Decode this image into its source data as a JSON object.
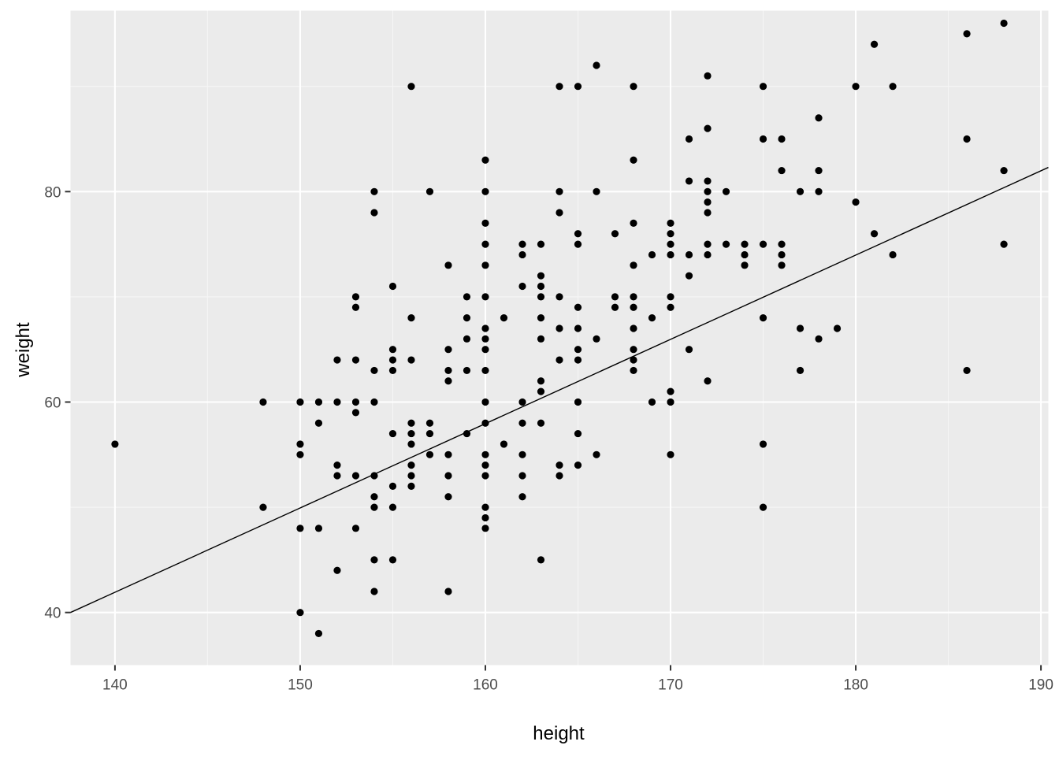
{
  "chart_data": {
    "type": "scatter",
    "title": "",
    "xlabel": "height",
    "ylabel": "weight",
    "xlim": [
      137.6,
      190.4
    ],
    "ylim": [
      35.0,
      97.2
    ],
    "x_ticks": [
      140,
      150,
      160,
      170,
      180,
      190
    ],
    "x_tick_labels": [
      "140",
      "150",
      "160",
      "170",
      "180",
      "190"
    ],
    "y_ticks": [
      40,
      60,
      80
    ],
    "y_tick_labels": [
      "40",
      "60",
      "80"
    ],
    "grid": true,
    "legend": "none",
    "colors": {
      "panel_background": "#ebebeb",
      "grid_major": "#ffffff",
      "grid_minor": "#f5f5f5",
      "points": "#000000",
      "line": "#000000"
    },
    "series": [
      {
        "points": [
          [
            140,
            56
          ],
          [
            148,
            50
          ],
          [
            148,
            60
          ],
          [
            150,
            40
          ],
          [
            150,
            48
          ],
          [
            150,
            55
          ],
          [
            150,
            56
          ],
          [
            150,
            60
          ],
          [
            151,
            38
          ],
          [
            151,
            48
          ],
          [
            151,
            58
          ],
          [
            151,
            60
          ],
          [
            152,
            44
          ],
          [
            152,
            53
          ],
          [
            152,
            54
          ],
          [
            152,
            60
          ],
          [
            152,
            64
          ],
          [
            153,
            48
          ],
          [
            153,
            53
          ],
          [
            153,
            59
          ],
          [
            153,
            60
          ],
          [
            153,
            64
          ],
          [
            153,
            69
          ],
          [
            153,
            70
          ],
          [
            154,
            42
          ],
          [
            154,
            45
          ],
          [
            154,
            50
          ],
          [
            154,
            51
          ],
          [
            154,
            53
          ],
          [
            154,
            60
          ],
          [
            154,
            63
          ],
          [
            154,
            78
          ],
          [
            154,
            80
          ],
          [
            155,
            45
          ],
          [
            155,
            50
          ],
          [
            155,
            52
          ],
          [
            155,
            57
          ],
          [
            155,
            63
          ],
          [
            155,
            64
          ],
          [
            155,
            65
          ],
          [
            155,
            71
          ],
          [
            156,
            52
          ],
          [
            156,
            53
          ],
          [
            156,
            54
          ],
          [
            156,
            56
          ],
          [
            156,
            57
          ],
          [
            156,
            58
          ],
          [
            156,
            64
          ],
          [
            156,
            68
          ],
          [
            156,
            90
          ],
          [
            157,
            55
          ],
          [
            157,
            57
          ],
          [
            157,
            58
          ],
          [
            157,
            80
          ],
          [
            158,
            42
          ],
          [
            158,
            51
          ],
          [
            158,
            53
          ],
          [
            158,
            55
          ],
          [
            158,
            62
          ],
          [
            158,
            63
          ],
          [
            158,
            65
          ],
          [
            158,
            73
          ],
          [
            159,
            57
          ],
          [
            159,
            63
          ],
          [
            159,
            66
          ],
          [
            159,
            68
          ],
          [
            159,
            70
          ],
          [
            160,
            48
          ],
          [
            160,
            49
          ],
          [
            160,
            50
          ],
          [
            160,
            53
          ],
          [
            160,
            54
          ],
          [
            160,
            55
          ],
          [
            160,
            58
          ],
          [
            160,
            60
          ],
          [
            160,
            63
          ],
          [
            160,
            65
          ],
          [
            160,
            66
          ],
          [
            160,
            67
          ],
          [
            160,
            70
          ],
          [
            160,
            73
          ],
          [
            160,
            75
          ],
          [
            160,
            77
          ],
          [
            160,
            80
          ],
          [
            160,
            83
          ],
          [
            161,
            56
          ],
          [
            161,
            68
          ],
          [
            162,
            51
          ],
          [
            162,
            53
          ],
          [
            162,
            55
          ],
          [
            162,
            58
          ],
          [
            162,
            60
          ],
          [
            162,
            71
          ],
          [
            162,
            74
          ],
          [
            162,
            75
          ],
          [
            163,
            45
          ],
          [
            163,
            58
          ],
          [
            163,
            61
          ],
          [
            163,
            62
          ],
          [
            163,
            66
          ],
          [
            163,
            68
          ],
          [
            163,
            70
          ],
          [
            163,
            71
          ],
          [
            163,
            72
          ],
          [
            163,
            75
          ],
          [
            164,
            53
          ],
          [
            164,
            54
          ],
          [
            164,
            64
          ],
          [
            164,
            67
          ],
          [
            164,
            70
          ],
          [
            164,
            78
          ],
          [
            164,
            80
          ],
          [
            164,
            90
          ],
          [
            165,
            54
          ],
          [
            165,
            57
          ],
          [
            165,
            60
          ],
          [
            165,
            64
          ],
          [
            165,
            65
          ],
          [
            165,
            67
          ],
          [
            165,
            69
          ],
          [
            165,
            75
          ],
          [
            165,
            76
          ],
          [
            165,
            90
          ],
          [
            166,
            55
          ],
          [
            166,
            66
          ],
          [
            166,
            80
          ],
          [
            166,
            92
          ],
          [
            167,
            69
          ],
          [
            167,
            70
          ],
          [
            167,
            76
          ],
          [
            168,
            63
          ],
          [
            168,
            64
          ],
          [
            168,
            65
          ],
          [
            168,
            67
          ],
          [
            168,
            69
          ],
          [
            168,
            70
          ],
          [
            168,
            73
          ],
          [
            168,
            77
          ],
          [
            168,
            83
          ],
          [
            168,
            90
          ],
          [
            169,
            60
          ],
          [
            169,
            68
          ],
          [
            169,
            74
          ],
          [
            170,
            55
          ],
          [
            170,
            60
          ],
          [
            170,
            61
          ],
          [
            170,
            69
          ],
          [
            170,
            70
          ],
          [
            170,
            74
          ],
          [
            170,
            75
          ],
          [
            170,
            76
          ],
          [
            170,
            77
          ],
          [
            171,
            65
          ],
          [
            171,
            72
          ],
          [
            171,
            74
          ],
          [
            171,
            81
          ],
          [
            171,
            85
          ],
          [
            172,
            62
          ],
          [
            172,
            74
          ],
          [
            172,
            75
          ],
          [
            172,
            78
          ],
          [
            172,
            79
          ],
          [
            172,
            80
          ],
          [
            172,
            81
          ],
          [
            172,
            86
          ],
          [
            172,
            91
          ],
          [
            173,
            75
          ],
          [
            173,
            80
          ],
          [
            174,
            73
          ],
          [
            174,
            74
          ],
          [
            174,
            75
          ],
          [
            175,
            50
          ],
          [
            175,
            56
          ],
          [
            175,
            68
          ],
          [
            175,
            75
          ],
          [
            175,
            85
          ],
          [
            175,
            90
          ],
          [
            176,
            73
          ],
          [
            176,
            74
          ],
          [
            176,
            75
          ],
          [
            176,
            82
          ],
          [
            176,
            85
          ],
          [
            177,
            63
          ],
          [
            177,
            67
          ],
          [
            177,
            80
          ],
          [
            178,
            66
          ],
          [
            178,
            80
          ],
          [
            178,
            82
          ],
          [
            178,
            87
          ],
          [
            179,
            67
          ],
          [
            180,
            79
          ],
          [
            180,
            90
          ],
          [
            181,
            76
          ],
          [
            181,
            94
          ],
          [
            182,
            74
          ],
          [
            182,
            90
          ],
          [
            186,
            63
          ],
          [
            186,
            85
          ],
          [
            186,
            95
          ],
          [
            188,
            75
          ],
          [
            188,
            82
          ],
          [
            188,
            96
          ]
        ]
      }
    ],
    "fit_line": {
      "x": [
        137.6,
        190.4
      ],
      "y": [
        40.0,
        82.3
      ]
    }
  }
}
